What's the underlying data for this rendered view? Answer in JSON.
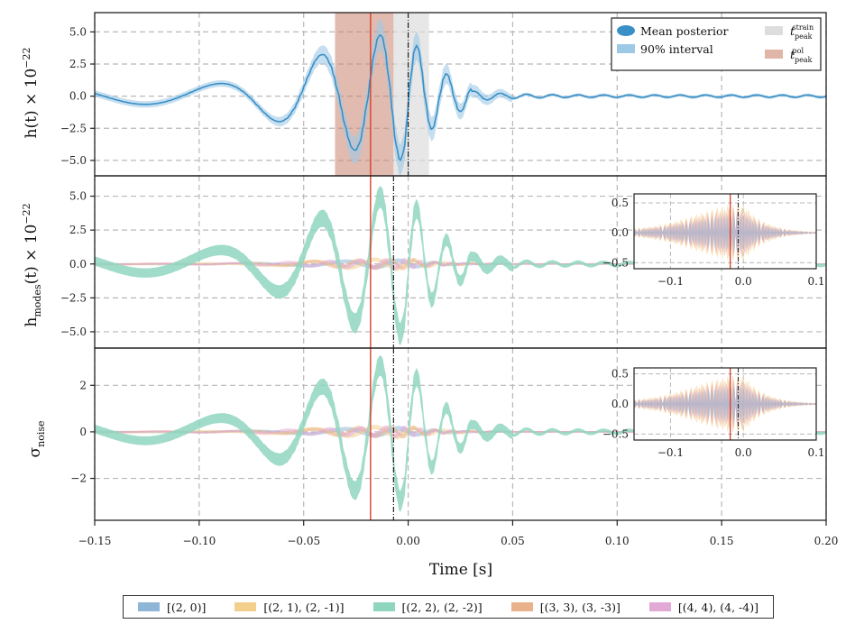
{
  "colors": {
    "mean": "#3a8fc7",
    "interval": "#9ec9e6",
    "strain_peak": "#dddddd",
    "pol_peak": "#c9836e",
    "red_line": "#d8402a",
    "grid": "#b8b8b8",
    "mode20": "#8fb6d6",
    "mode21": "#f3cf8e",
    "mode22": "#8fd6bf",
    "mode33": "#eab28a",
    "mode44": "#e2a8d6"
  },
  "chart_data": [
    {
      "name": "strain",
      "type": "area",
      "ylabel": "h(t) × 10⁻²²",
      "xlim": [
        -0.15,
        0.2
      ],
      "ylim": [
        -6.2,
        6.5
      ],
      "yticks": [
        "−5.0",
        "−2.5",
        "0.0",
        "2.5",
        "5.0"
      ],
      "ytick_values": [
        -5.0,
        -2.5,
        0.0,
        2.5,
        5.0
      ],
      "legend": {
        "placement": "top-right",
        "entries": [
          "Mean posterior",
          "90% interval",
          "t_peak^strain",
          "t_peak^pol"
        ],
        "mean_label": "Mean posterior",
        "interval_label": "90% interval",
        "strain_peak_base": "t",
        "strain_peak_sub": "peak",
        "strain_peak_sup": "strain",
        "pol_peak_base": "t",
        "pol_peak_sub": "peak",
        "pol_peak_sup": "pol"
      },
      "strain_peak_region": [
        -0.007,
        0.01
      ],
      "pol_peak_region": [
        -0.035,
        -0.007
      ],
      "red_line_x": -0.018,
      "dashdot_line_x": 0.0
    },
    {
      "name": "modes",
      "type": "area",
      "ylabel": "h_modes(t) × 10⁻²²",
      "xlim": [
        -0.15,
        0.2
      ],
      "ylim": [
        -6.2,
        6.5
      ],
      "yticks": [
        "−5.0",
        "−2.5",
        "0.0",
        "2.5",
        "5.0"
      ],
      "ytick_values": [
        -5.0,
        -2.5,
        0.0,
        2.5,
        5.0
      ],
      "red_line_x": -0.018,
      "dashdot_line_x": -0.007,
      "inset": {
        "xlim": [
          -0.15,
          0.1
        ],
        "ylim": [
          -0.6,
          0.65
        ],
        "xticks": [
          "−0.1",
          "0.0",
          "0.1"
        ],
        "xtick_values": [
          -0.1,
          0.0,
          0.1
        ],
        "yticks": [
          "−0.5",
          "0.0",
          "0.5"
        ],
        "ytick_values": [
          -0.5,
          0.0,
          0.5
        ],
        "red_line_x": -0.018,
        "dashdot_line_x": -0.007
      }
    },
    {
      "name": "noise",
      "type": "area",
      "ylabel": "σ_noise",
      "xlim": [
        -0.15,
        0.2
      ],
      "ylim": [
        -3.8,
        3.6
      ],
      "yticks": [
        "−2",
        "0",
        "2"
      ],
      "ytick_values": [
        -2,
        0,
        2
      ],
      "red_line_x": -0.018,
      "dashdot_line_x": -0.007,
      "inset": {
        "xlim": [
          -0.15,
          0.1
        ],
        "ylim": [
          -0.6,
          0.6
        ],
        "xticks": [
          "−0.1",
          "0.0",
          "0.1"
        ],
        "xtick_values": [
          -0.1,
          0.0,
          0.1
        ],
        "yticks": [
          "−0.5",
          "0.0",
          "0.5"
        ],
        "ytick_values": [
          -0.5,
          0.0,
          0.5
        ],
        "red_line_x": -0.018,
        "dashdot_line_x": -0.007
      }
    }
  ],
  "xaxis": {
    "label": "Time [s]",
    "ticks": [
      "−0.15",
      "−0.10",
      "−0.05",
      "0.00",
      "0.05",
      "0.10",
      "0.15",
      "0.20"
    ],
    "tick_values": [
      -0.15,
      -0.1,
      -0.05,
      0.0,
      0.05,
      0.1,
      0.15,
      0.2
    ]
  },
  "ylabels": {
    "strain_base": "h(t) × 10",
    "strain_exp": "−22",
    "modes_h": "h",
    "modes_sub": "modes",
    "modes_rest": "(t) × 10",
    "modes_exp": "−22",
    "noise_base": "σ",
    "noise_sub": "noise"
  },
  "mode_legend": [
    {
      "label": "[(2, 0)]",
      "color": "#8fb6d6"
    },
    {
      "label": "[(2, 1), (2, -1)]",
      "color": "#f3cf8e"
    },
    {
      "label": "[(2, 2), (2, -2)]",
      "color": "#8fd6bf"
    },
    {
      "label": "[(3, 3), (3, -3)]",
      "color": "#eab28a"
    },
    {
      "label": "[(4, 4), (4, -4)]",
      "color": "#e2a8d6"
    }
  ]
}
